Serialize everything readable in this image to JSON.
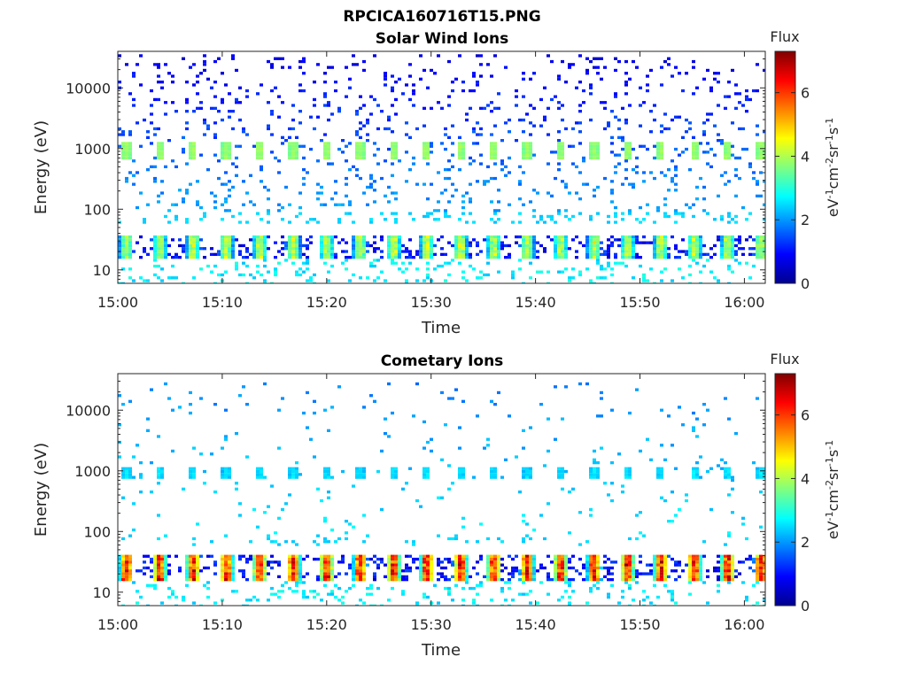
{
  "figure_title": "RPCICA160716T15.PNG",
  "chart_data": [
    {
      "type": "heatmap",
      "title": "Solar Wind Ions",
      "xlabel": "Time",
      "ylabel": "Energy (eV)",
      "x_ticks": [
        "15:00",
        "15:10",
        "15:20",
        "15:30",
        "15:40",
        "15:50",
        "16:00"
      ],
      "x_range": [
        "15:00",
        "16:02"
      ],
      "y_scale": "log",
      "y_ticks": [
        10,
        100,
        1000,
        10000
      ],
      "y_range": [
        6,
        40000
      ],
      "colorbar": {
        "title": "Flux",
        "label": "eV-1cm-2sr-1s-1",
        "ticks": [
          0,
          2,
          4,
          6
        ],
        "range": [
          0,
          7.3
        ],
        "colormap": "jet"
      },
      "bands": [
        {
          "energy_range": [
            700,
            1400
          ],
          "peak_flux": 3.6,
          "pulse_period_min": 3.2,
          "description": "periodic peaks near 1000 eV"
        },
        {
          "energy_range": [
            18,
            40
          ],
          "peak_flux": 3.4,
          "pulse_period_min": 3.2,
          "description": "periodic low-energy band"
        },
        {
          "energy_range": [
            100,
            40000
          ],
          "peak_flux": 1.2,
          "description": "scattered background counts"
        }
      ]
    },
    {
      "type": "heatmap",
      "title": "Cometary Ions",
      "xlabel": "Time",
      "ylabel": "Energy (eV)",
      "x_ticks": [
        "15:00",
        "15:10",
        "15:20",
        "15:30",
        "15:40",
        "15:50",
        "16:00"
      ],
      "x_range": [
        "15:00",
        "16:02"
      ],
      "y_scale": "log",
      "y_ticks": [
        10,
        100,
        1000,
        10000
      ],
      "y_range": [
        6,
        40000
      ],
      "colorbar": {
        "title": "Flux",
        "label": "eV-1cm-2sr-1s-1",
        "ticks": [
          0,
          2,
          4,
          6
        ],
        "range": [
          0,
          7.3
        ],
        "colormap": "jet"
      },
      "bands": [
        {
          "energy_range": [
            18,
            42
          ],
          "peak_flux": 5.8,
          "pulse_period_min": 3.2,
          "description": "strong periodic band near 25 eV"
        },
        {
          "energy_range": [
            800,
            1200
          ],
          "peak_flux": 2.3,
          "pulse_period_min": 3.2,
          "description": "weak periodic peaks near 1000 eV"
        },
        {
          "energy_range": [
            100,
            30000
          ],
          "peak_flux": 2.0,
          "description": "sparse scattered counts"
        }
      ]
    }
  ]
}
